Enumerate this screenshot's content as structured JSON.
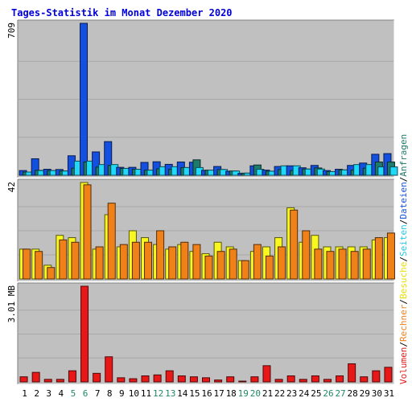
{
  "chart_data": {
    "type": "bar",
    "title": "Tages-Statistik im Monat Dezember 2020",
    "days": [
      "1",
      "2",
      "3",
      "4",
      "5",
      "6",
      "7",
      "8",
      "9",
      "10",
      "11",
      "12",
      "13",
      "14",
      "15",
      "16",
      "17",
      "18",
      "19",
      "20",
      "21",
      "22",
      "23",
      "24",
      "25",
      "26",
      "27",
      "28",
      "29",
      "30",
      "31"
    ],
    "weekend_days": [
      "5",
      "6",
      "12",
      "13",
      "19",
      "20",
      "26",
      "27"
    ],
    "panels": [
      {
        "id": "top",
        "ymax_label": "709",
        "ymax": 709,
        "series": [
          {
            "name": "Anfragen",
            "color": "#1450e0",
            "values": [
              22,
              77,
              28,
              27,
              91,
              709,
              109,
              157,
              37,
              37,
              60,
              63,
              51,
              62,
              61,
              23,
              41,
              19,
              9,
              44,
              24,
              41,
              44,
              35,
              46,
              22,
              28,
              46,
              57,
              98,
              101
            ]
          },
          {
            "name": "Dateien",
            "color": "#1e7a6a",
            "values": [
              15,
              23,
              22,
              20,
              33,
              62,
              38,
              46,
              32,
              28,
              24,
              30,
              28,
              36,
              72,
              24,
              27,
              20,
              10,
              48,
              19,
              27,
              22,
              29,
              34,
              17,
              25,
              24,
              33,
              62,
              62
            ]
          },
          {
            "name": "Seiten",
            "color": "#20d8f8",
            "values": [
              15,
              22,
              22,
              20,
              66,
              66,
              50,
              50,
              32,
              28,
              24,
              40,
              40,
              36,
              36,
              24,
              27,
              20,
              10,
              28,
              19,
              44,
              44,
              29,
              29,
              17,
              25,
              50,
              50,
              39,
              39
            ]
          }
        ]
      },
      {
        "id": "middle",
        "ymax_label": "42",
        "ymax": 42,
        "series": [
          {
            "name": "Besuche",
            "color": "#f8f820",
            "values": [
              13,
              13,
              6,
              19,
              18,
              42,
              13,
              28,
              14,
              21,
              18,
              15,
              13,
              15,
              12,
              11,
              16,
              14,
              8,
              12,
              14,
              18,
              31,
              16,
              19,
              14,
              14,
              14,
              14,
              17,
              18
            ]
          },
          {
            "name": "Rechner",
            "color": "#f08018",
            "values": [
              13,
              12,
              5,
              17,
              16,
              41,
              14,
              33,
              15,
              16,
              16,
              21,
              14,
              16,
              15,
              10,
              12,
              13,
              8,
              15,
              10,
              14,
              30,
              21,
              13,
              12,
              13,
              12,
              13,
              18,
              20
            ]
          }
        ]
      },
      {
        "id": "bottom",
        "ymax_label": "3.01 MB",
        "ymax": 3.01,
        "unit": "MB",
        "series": [
          {
            "name": "Volumen",
            "color": "#e81818",
            "values": [
              0.16,
              0.3,
              0.08,
              0.08,
              0.35,
              3.01,
              0.27,
              0.79,
              0.13,
              0.1,
              0.19,
              0.22,
              0.35,
              0.19,
              0.16,
              0.13,
              0.06,
              0.16,
              0.02,
              0.16,
              0.51,
              0.08,
              0.19,
              0.08,
              0.19,
              0.08,
              0.19,
              0.57,
              0.16,
              0.35,
              0.46
            ]
          }
        ]
      }
    ]
  },
  "legend_right": [
    {
      "text": "Anfragen",
      "color": "#1e7a6a"
    },
    {
      "text": "/",
      "color": "#000000"
    },
    {
      "text": "Dateien",
      "color": "#1450e0"
    },
    {
      "text": "/",
      "color": "#000000"
    },
    {
      "text": "Seiten",
      "color": "#20c8e8"
    },
    {
      "text": "/",
      "color": "#000000"
    },
    {
      "text": "Besuche",
      "color": "#e8e000"
    },
    {
      "text": "/",
      "color": "#000000"
    },
    {
      "text": "Rechner",
      "color": "#f08018"
    },
    {
      "text": "/",
      "color": "#000000"
    },
    {
      "text": "Volumen",
      "color": "#e81818"
    }
  ],
  "colors": {
    "background": "#ffffff",
    "panel": "#c0c0c0",
    "gridline": "#a8a8a8",
    "title": "#0000d8",
    "weekend_label": "#208868",
    "weekday_label": "#000000"
  }
}
